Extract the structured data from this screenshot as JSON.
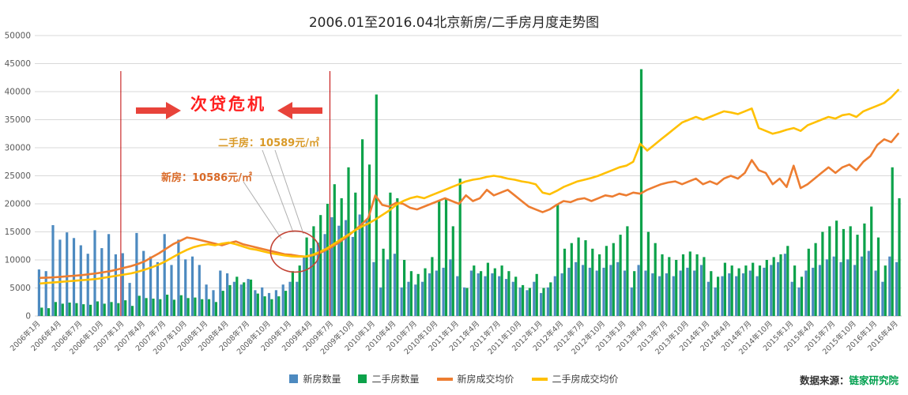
{
  "title": "2006.01至2016.04北京新房/二手房月度走势图",
  "source": {
    "prefix": "数据来源：",
    "name": "链家研究院"
  },
  "annotations": {
    "crisis_label": "次贷危机",
    "second_hand_label": "二手房：10589元/㎡",
    "new_home_label": "新房：10586元/㎡",
    "crisis_start_tick": "2007年1月",
    "crisis_end_tick": "2009年7月"
  },
  "colors": {
    "new_count_bar": "#4D8AC0",
    "second_hand_count_bar": "#0CA24A",
    "new_price_line": "#ED7D31",
    "second_hand_price_line": "#FFC000",
    "crisis_red": "#C00000",
    "arrow_red": "#E8433A",
    "second_hand_label_text": "#D99A28",
    "new_home_label_text": "#D96A28",
    "source_name_green": "#00A04E",
    "gridline": "#D9D9D9"
  },
  "chart_data": {
    "type": "bar+line combo",
    "title": "2006.01至2016.04北京新房/二手房月度走势图",
    "months_total": 124,
    "tick_every": 3,
    "ylim": [
      0,
      50000
    ],
    "y_step": 5000,
    "x_tick_labels": [
      "2006年1月",
      "2006年4月",
      "2006年7月",
      "2006年10月",
      "2007年1月",
      "2007年4月",
      "2007年7月",
      "2007年10月",
      "2008年1月",
      "2008年4月",
      "2008年7月",
      "2008年10月",
      "2009年1月",
      "2009年4月",
      "2009年7月",
      "2009年10月",
      "2010年1月",
      "2010年4月",
      "2010年7月",
      "2010年10月",
      "2011年1月",
      "2011年4月",
      "2011年7月",
      "2011年10月",
      "2012年1月",
      "2012年4月",
      "2012年7月",
      "2012年10月",
      "2013年1月",
      "2013年4月",
      "2013年7月",
      "2013年10月",
      "2014年1月",
      "2014年4月",
      "2014年7月",
      "2014年10月",
      "2015年1月",
      "2015年4月",
      "2015年7月",
      "2015年10月",
      "2016年1月",
      "2016年4月"
    ],
    "series": [
      {
        "name": "新房数量",
        "type": "bar",
        "color": "#4D8AC0",
        "values": [
          8300,
          8000,
          16200,
          13600,
          14900,
          13900,
          12600,
          11100,
          15300,
          12100,
          14600,
          11000,
          11200,
          5900,
          14800,
          11600,
          10600,
          9600,
          14600,
          9100,
          13600,
          10100,
          10600,
          9100,
          5600,
          4600,
          8100,
          7600,
          6100,
          5600,
          6600,
          4600,
          5100,
          4100,
          4600,
          5600,
          6100,
          6100,
          10600,
          12100,
          13100,
          14600,
          17600,
          16100,
          17100,
          14100,
          18100,
          17100,
          9600,
          5100,
          10100,
          11100,
          5100,
          6100,
          5600,
          6100,
          7600,
          8100,
          8600,
          10100,
          7100,
          5100,
          8100,
          7600,
          7100,
          7600,
          7100,
          6600,
          6100,
          5100,
          4600,
          6100,
          4100,
          5100,
          7100,
          7600,
          8600,
          9600,
          9100,
          8600,
          8100,
          8600,
          9100,
          9600,
          8100,
          5100,
          9100,
          8100,
          7600,
          7100,
          7600,
          7100,
          8100,
          8600,
          8100,
          9100,
          6100,
          5100,
          7100,
          7600,
          7100,
          7600,
          8100,
          7100,
          8600,
          9100,
          9600,
          11100,
          6100,
          5100,
          8100,
          8600,
          9100,
          10100,
          10600,
          9600,
          10100,
          9100,
          10600,
          11600,
          8100,
          6100,
          10600,
          9600
        ]
      },
      {
        "name": "二手房数量",
        "type": "bar",
        "color": "#0CA24A",
        "values": [
          1500,
          1400,
          2500,
          2200,
          2400,
          2300,
          2100,
          2000,
          2600,
          2200,
          2500,
          2300,
          2800,
          1800,
          3600,
          3200,
          3100,
          3000,
          3800,
          2900,
          3700,
          3200,
          3300,
          3000,
          3000,
          2500,
          4500,
          5500,
          7000,
          6000,
          6500,
          4000,
          3500,
          3000,
          3500,
          4500,
          8000,
          9000,
          14000,
          16000,
          18000,
          20000,
          23500,
          21000,
          26500,
          22000,
          31500,
          27000,
          39500,
          12000,
          22000,
          21000,
          10000,
          8000,
          7500,
          8500,
          10500,
          20500,
          21000,
          16000,
          24500,
          5000,
          9000,
          8000,
          9500,
          8500,
          9000,
          8000,
          7000,
          5500,
          5000,
          7500,
          5000,
          6000,
          20000,
          12000,
          13000,
          14000,
          13500,
          12000,
          11000,
          12500,
          13000,
          14500,
          16000,
          8000,
          44000,
          15000,
          13000,
          11000,
          10500,
          10000,
          11000,
          11500,
          11000,
          10500,
          8000,
          7000,
          9500,
          9000,
          8500,
          9000,
          9500,
          9000,
          10000,
          10500,
          11000,
          12500,
          9000,
          7000,
          12000,
          13000,
          15000,
          16000,
          17000,
          15500,
          16000,
          14500,
          16500,
          19500,
          14000,
          9000,
          26500,
          21000
        ]
      },
      {
        "name": "新房成交均价",
        "type": "line",
        "color": "#ED7D31",
        "values": [
          6800,
          6850,
          6900,
          7000,
          7100,
          7200,
          7300,
          7450,
          7600,
          7800,
          8000,
          8300,
          8600,
          8900,
          9300,
          9800,
          10500,
          11200,
          12000,
          12800,
          13400,
          14000,
          13800,
          13500,
          13200,
          12900,
          12600,
          13000,
          13300,
          12800,
          12500,
          12200,
          11900,
          11600,
          11300,
          11000,
          10900,
          10700,
          10586,
          10800,
          11200,
          11800,
          12500,
          13300,
          14200,
          15200,
          16300,
          17500,
          21500,
          19800,
          19500,
          20200,
          20000,
          19300,
          19000,
          19500,
          20000,
          20500,
          21000,
          20500,
          20000,
          21500,
          20500,
          21000,
          22500,
          21500,
          22000,
          22500,
          21500,
          20500,
          19500,
          19000,
          18500,
          19000,
          19800,
          20500,
          20300,
          20800,
          21000,
          20500,
          21000,
          21500,
          21300,
          21800,
          21500,
          22000,
          21800,
          22500,
          23000,
          23500,
          23800,
          24000,
          23500,
          24000,
          24500,
          23500,
          24000,
          23500,
          24500,
          25000,
          24500,
          25500,
          27800,
          26000,
          25500,
          23500,
          24500,
          23000,
          26800,
          22800,
          23500,
          24500,
          25500,
          26500,
          25500,
          26500,
          27000,
          26000,
          27500,
          28500,
          30500,
          31500,
          31000,
          32500
        ]
      },
      {
        "name": "二手房成交均价",
        "type": "line",
        "color": "#FFC000",
        "values": [
          5800,
          5900,
          6000,
          6100,
          6200,
          6300,
          6400,
          6500,
          6600,
          6800,
          7000,
          7200,
          7400,
          7600,
          7900,
          8300,
          8700,
          9200,
          9800,
          10500,
          11200,
          11800,
          12300,
          12600,
          12800,
          12600,
          12900,
          13100,
          12800,
          12400,
          12000,
          11800,
          11500,
          11200,
          11000,
          10800,
          10650,
          10589,
          10600,
          10900,
          11400,
          12000,
          12800,
          13600,
          14400,
          15200,
          15900,
          16500,
          17200,
          18000,
          18800,
          19800,
          20500,
          21000,
          21300,
          21000,
          21500,
          22000,
          22500,
          23000,
          23500,
          24000,
          24300,
          24500,
          24800,
          25000,
          24800,
          24500,
          24300,
          24000,
          23800,
          23500,
          22000,
          21700,
          22300,
          23000,
          23500,
          24000,
          24300,
          24600,
          25000,
          25500,
          26000,
          26500,
          26800,
          27500,
          30700,
          29500,
          30500,
          31500,
          32500,
          33500,
          34500,
          35000,
          35500,
          35000,
          35500,
          36000,
          36500,
          36300,
          36000,
          36500,
          37000,
          33500,
          33000,
          32500,
          32800,
          33200,
          33500,
          33000,
          34000,
          34500,
          35000,
          35500,
          35200,
          35800,
          36000,
          35500,
          36500,
          37000,
          37500,
          38000,
          39000,
          40300
        ]
      }
    ],
    "annotation_marks": {
      "vline_month_indices": [
        12,
        42
      ],
      "ellipse": {
        "month_index": 36.5,
        "value": 11500
      }
    }
  }
}
